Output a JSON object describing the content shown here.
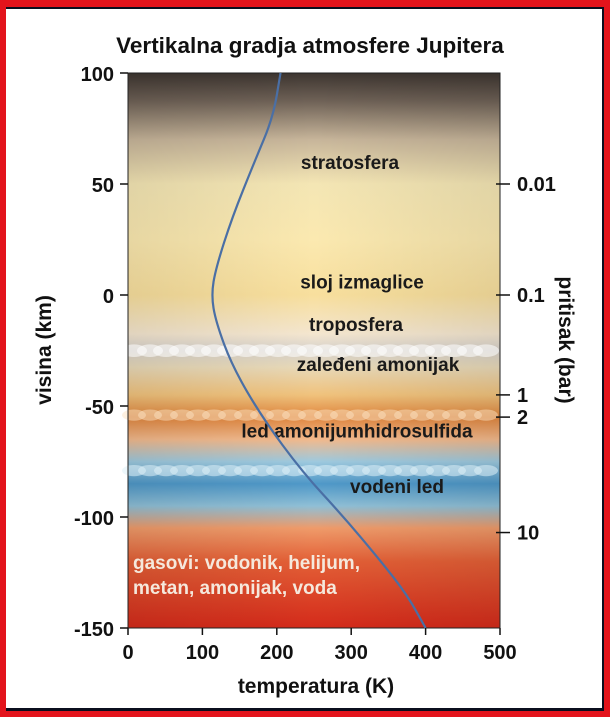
{
  "chart_data": {
    "type": "line",
    "title": "Vertikalna gradja atmosfere Jupitera",
    "xlabel": "temperatura (K)",
    "ylabel": "visina (km)",
    "y2label": "pritisak (bar)",
    "xlim": [
      0,
      500
    ],
    "ylim": [
      -150,
      100
    ],
    "x_ticks": [
      0,
      100,
      200,
      300,
      400,
      500
    ],
    "y_ticks": [
      100,
      50,
      0,
      -50,
      -100,
      -150
    ],
    "pressure_ticks": [
      {
        "label": "0.01",
        "altitude": 50
      },
      {
        "label": "0.1",
        "altitude": 0
      },
      {
        "label": "1",
        "altitude": -45
      },
      {
        "label": "2",
        "altitude": -55
      },
      {
        "label": "10",
        "altitude": -107
      }
    ],
    "series": [
      {
        "color": "#4a6fa5",
        "x": [
          205,
          195,
          170,
          140,
          118,
          112,
          118,
          140,
          180,
          235,
          290,
          340,
          375,
          400
        ],
        "y": [
          100,
          80,
          60,
          35,
          12,
          0,
          -12,
          -32,
          -55,
          -80,
          -100,
          -120,
          -135,
          -150
        ]
      }
    ],
    "layers": [
      {
        "label": "stratosfera",
        "altitude": 60
      },
      {
        "label": "sloj izmaglice",
        "altitude": 6
      },
      {
        "label": "troposfera",
        "altitude": -13
      },
      {
        "label": "zaleđeni amonijak",
        "altitude": -31
      },
      {
        "label": "led amonijumhidrosulfida",
        "altitude": -61
      },
      {
        "label": "vodeni led",
        "altitude": -86
      }
    ],
    "gas_note": [
      "gasovi: vodonik, helijum,",
      "metan, amonijak, voda"
    ],
    "grid": false,
    "legend": "none"
  }
}
